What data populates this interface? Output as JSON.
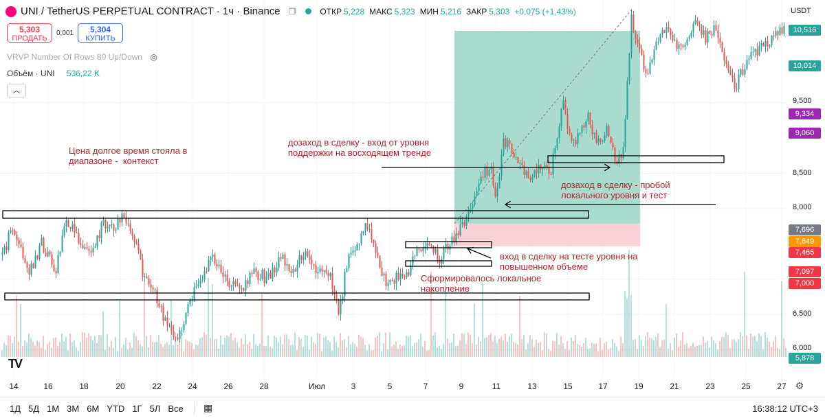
{
  "header": {
    "symbol": "UNI / TetherUS PERPETUAL CONTRACT · 1ч · Binance",
    "ohlc": [
      {
        "label": "ОТКР",
        "value": "5,228"
      },
      {
        "label": "МАКС",
        "value": "5,323"
      },
      {
        "label": "МИН",
        "value": "5,216"
      },
      {
        "label": "ЗАКР",
        "value": "5,303"
      }
    ],
    "change": "+0,075 (+1,43%)"
  },
  "trade": {
    "sell_price": "5,303",
    "sell_label": "ПРОДАТЬ",
    "spread": "0,001",
    "buy_price": "5,304",
    "buy_label": "КУПИТЬ"
  },
  "indicators": {
    "vrvp": "VRVP Number Of Rows 80 Up/Down",
    "volume_label": "Объём · UNI",
    "volume_value": "536,22 K"
  },
  "currency": "USDT",
  "chart_data": {
    "type": "candlestick",
    "timeframe": "1h",
    "x_ticks": [
      "14",
      "16",
      "18",
      "20",
      "22",
      "24",
      "26",
      "28",
      "Июл",
      "3",
      "5",
      "7",
      "9",
      "11",
      "13",
      "15",
      "17",
      "19",
      "21",
      "23",
      "25",
      "27"
    ],
    "y_ticks": [
      "6,000",
      "6,500",
      "7,000",
      "8,000",
      "8,500",
      "9,500"
    ],
    "ylim": [
      5.85,
      10.7
    ],
    "price_tags": [
      {
        "value": "10,516",
        "color": "#26a69a"
      },
      {
        "value": "10,014",
        "color": "#26a69a"
      },
      {
        "value": "9,334",
        "color": "#9c27b0"
      },
      {
        "value": "9,060",
        "color": "#9c27b0"
      },
      {
        "value": "7,696",
        "color": "#787b86"
      },
      {
        "value": "7,649",
        "color": "#ff9800"
      },
      {
        "value": "7,465",
        "color": "#f23645"
      },
      {
        "value": "7,097",
        "color": "#f23645"
      },
      {
        "value": "7,000",
        "color": "#f23645"
      },
      {
        "value": "5,878",
        "color": "#26a69a"
      }
    ],
    "price_path": [
      [
        0,
        7.3
      ],
      [
        20,
        7.75
      ],
      [
        40,
        7.05
      ],
      [
        60,
        7.5
      ],
      [
        80,
        7.1
      ],
      [
        95,
        7.9
      ],
      [
        110,
        7.6
      ],
      [
        130,
        7.3
      ],
      [
        150,
        7.8
      ],
      [
        165,
        7.7
      ],
      [
        180,
        7.9
      ],
      [
        195,
        7.55
      ],
      [
        210,
        7.0
      ],
      [
        225,
        6.8
      ],
      [
        240,
        6.4
      ],
      [
        255,
        6.2
      ],
      [
        265,
        6.3
      ],
      [
        275,
        6.7
      ],
      [
        290,
        7.0
      ],
      [
        310,
        7.3
      ],
      [
        330,
        7.0
      ],
      [
        350,
        6.85
      ],
      [
        370,
        7.1
      ],
      [
        390,
        7.0
      ],
      [
        410,
        7.3
      ],
      [
        425,
        7.1
      ],
      [
        440,
        7.4
      ],
      [
        460,
        7.15
      ],
      [
        480,
        7.0
      ],
      [
        493,
        6.55
      ],
      [
        505,
        7.25
      ],
      [
        520,
        7.5
      ],
      [
        533,
        7.8
      ],
      [
        548,
        7.4
      ],
      [
        560,
        6.95
      ],
      [
        575,
        7.0
      ],
      [
        592,
        7.1
      ],
      [
        605,
        7.35
      ],
      [
        620,
        7.45
      ],
      [
        640,
        7.3
      ],
      [
        655,
        7.5
      ],
      [
        670,
        7.7
      ],
      [
        685,
        8.0
      ],
      [
        700,
        8.45
      ],
      [
        712,
        8.6
      ],
      [
        722,
        8.15
      ],
      [
        732,
        9.0
      ],
      [
        745,
        8.8
      ],
      [
        758,
        8.6
      ],
      [
        770,
        8.4
      ],
      [
        785,
        8.6
      ],
      [
        800,
        8.5
      ],
      [
        812,
        9.2
      ],
      [
        820,
        9.5
      ],
      [
        830,
        8.9
      ],
      [
        842,
        9.0
      ],
      [
        855,
        9.3
      ],
      [
        868,
        8.9
      ],
      [
        882,
        9.1
      ],
      [
        895,
        8.7
      ],
      [
        905,
        8.7
      ],
      [
        912,
        9.8
      ],
      [
        918,
        10.7
      ],
      [
        928,
        10.3
      ],
      [
        940,
        9.9
      ],
      [
        950,
        10.2
      ],
      [
        960,
        10.5
      ],
      [
        972,
        10.6
      ],
      [
        985,
        10.3
      ],
      [
        1000,
        10.4
      ],
      [
        1012,
        10.7
      ],
      [
        1025,
        10.4
      ],
      [
        1040,
        10.6
      ],
      [
        1055,
        10.0
      ],
      [
        1068,
        9.7
      ],
      [
        1080,
        9.95
      ],
      [
        1095,
        10.2
      ],
      [
        1110,
        10.3
      ],
      [
        1125,
        10.45
      ],
      [
        1140,
        10.55
      ]
    ],
    "position": {
      "take_profit": 10.516,
      "entry": 7.649,
      "stop_loss": 7.465
    },
    "levels": [
      {
        "price": 7.97
      },
      {
        "price": 7.0
      },
      {
        "price": 7.49
      },
      {
        "price": 7.25
      },
      {
        "price": 8.68
      }
    ],
    "annotations": [
      {
        "id": "range",
        "text": "Цена долгое время стояла в\nдиапазоне -  контекст"
      },
      {
        "id": "add1",
        "text": "дозаход в сделку - вход от уровня\nподдержки на восходящем тренде"
      },
      {
        "id": "add2",
        "text": "дозаход в сделку - пробой\nлокального уровня и тест"
      },
      {
        "id": "entry",
        "text": "вход в сделку на тесте уровня на\nповышенном объеме"
      },
      {
        "id": "accum",
        "text": "Сформировалось локальное\nнакопление"
      }
    ]
  },
  "bottom": {
    "ranges": [
      "1Д",
      "5Д",
      "1М",
      "3М",
      "6М",
      "YTD",
      "1Г",
      "5Л",
      "Все"
    ],
    "clock": "16:38:12 UTC+3"
  }
}
